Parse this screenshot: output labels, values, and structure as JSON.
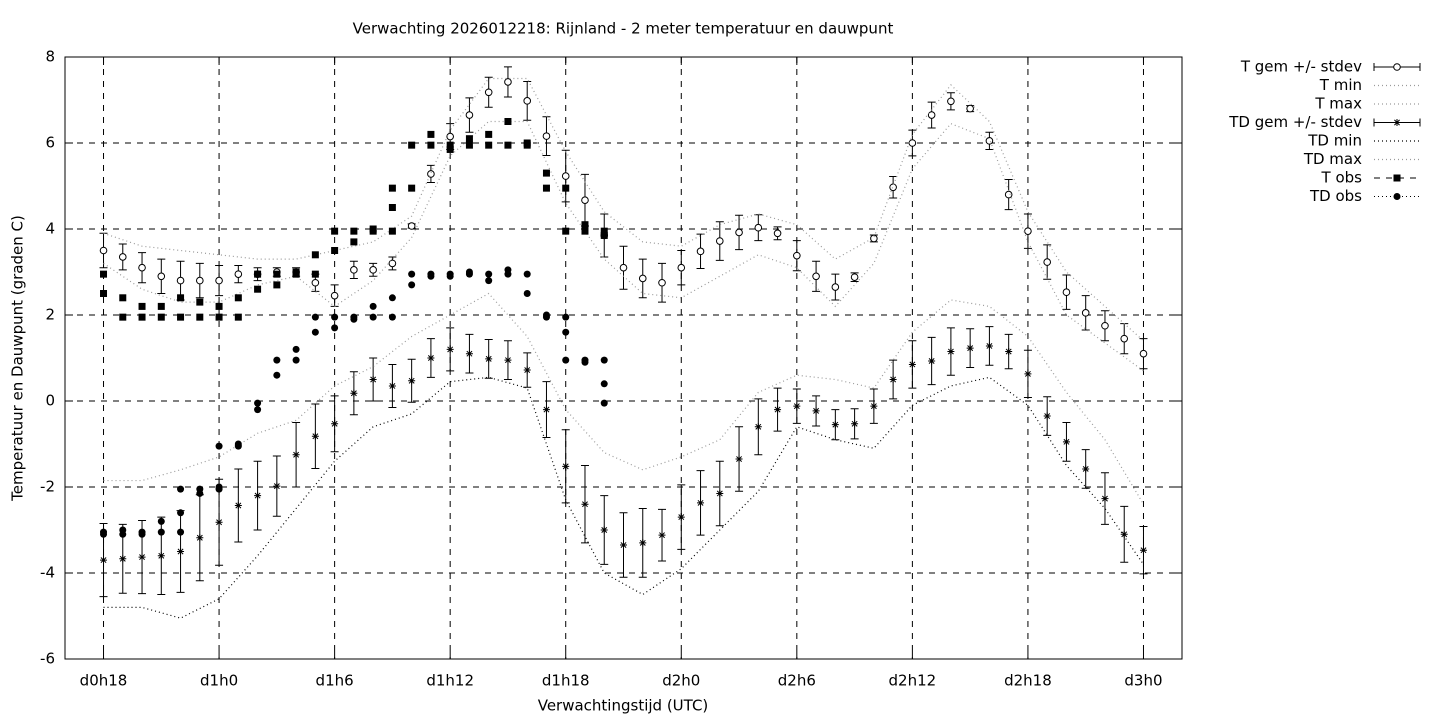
{
  "chart_data": {
    "type": "line",
    "title": "Verwachting 2026012218: Rijnland - 2 meter temperatuur en dauwpunt",
    "x_label": "Verwachtingstijd (UTC)",
    "y_label": "Temperatuur en Dauwpunt (graden C)",
    "xlim": [
      -2,
      56
    ],
    "ylim": [
      -6,
      8
    ],
    "xticks": [
      {
        "value": 0,
        "label": "d0h18"
      },
      {
        "value": 6,
        "label": "d1h0"
      },
      {
        "value": 12,
        "label": "d1h6"
      },
      {
        "value": 18,
        "label": "d1h12"
      },
      {
        "value": 24,
        "label": "d1h18"
      },
      {
        "value": 30,
        "label": "d2h0"
      },
      {
        "value": 36,
        "label": "d2h6"
      },
      {
        "value": 42,
        "label": "d2h12"
      },
      {
        "value": 48,
        "label": "d2h18"
      },
      {
        "value": 54,
        "label": "d3h0"
      }
    ],
    "yticks": [
      -6,
      -4,
      -2,
      0,
      2,
      4,
      6,
      8
    ],
    "grid": true,
    "legend": "outside-top-right",
    "series": [
      {
        "name": "T gem +/- stdev",
        "style": "errorbar-circle",
        "color": "#000000",
        "x": [
          0,
          1,
          2,
          3,
          4,
          5,
          6,
          7,
          8,
          9,
          10,
          11,
          12,
          13,
          14,
          15,
          16,
          17,
          18,
          19,
          20,
          21,
          22,
          23,
          24,
          25,
          26,
          27,
          28,
          29,
          30,
          31,
          32,
          33,
          34,
          35,
          36,
          37,
          38,
          39,
          40,
          41,
          42,
          43,
          44,
          45,
          46,
          47,
          48,
          49,
          50,
          51,
          52,
          53,
          54
        ],
        "values": [
          3.5,
          3.35,
          3.1,
          2.9,
          2.8,
          2.8,
          2.8,
          2.95,
          2.95,
          3.0,
          3.0,
          2.75,
          2.45,
          3.05,
          3.05,
          3.2,
          4.07,
          5.28,
          6.15,
          6.65,
          7.18,
          7.42,
          6.98,
          6.16,
          5.23,
          4.67,
          3.85,
          3.1,
          2.85,
          2.75,
          3.1,
          3.48,
          3.72,
          3.92,
          4.03,
          3.9,
          3.38,
          2.9,
          2.65,
          2.88,
          3.78,
          4.97,
          6.0,
          6.65,
          6.97,
          6.8,
          6.05,
          4.8,
          3.95,
          3.23,
          2.53,
          2.05,
          1.75,
          1.45,
          1.1
        ],
        "errors": [
          0.4,
          0.3,
          0.35,
          0.4,
          0.45,
          0.4,
          0.35,
          0.2,
          0.15,
          0.1,
          0.1,
          0.2,
          0.25,
          0.2,
          0.15,
          0.15,
          0.05,
          0.2,
          0.3,
          0.4,
          0.35,
          0.35,
          0.45,
          0.45,
          0.6,
          0.6,
          0.5,
          0.5,
          0.45,
          0.45,
          0.4,
          0.4,
          0.45,
          0.4,
          0.3,
          0.15,
          0.35,
          0.35,
          0.3,
          0.1,
          0.08,
          0.25,
          0.3,
          0.3,
          0.2,
          0.07,
          0.2,
          0.35,
          0.4,
          0.4,
          0.4,
          0.4,
          0.35,
          0.35,
          0.35
        ]
      },
      {
        "name": "T min",
        "style": "dotted",
        "color": "#9a9a9a",
        "x": [
          0,
          2,
          4,
          6,
          8,
          10,
          12,
          14,
          16,
          18,
          20,
          22,
          24,
          26,
          28,
          30,
          32,
          34,
          36,
          38,
          40,
          42,
          44,
          46,
          48,
          50,
          52,
          54
        ],
        "values": [
          3.2,
          2.6,
          2.3,
          2.3,
          2.7,
          2.9,
          2.2,
          2.8,
          3.8,
          5.7,
          6.5,
          6.5,
          4.6,
          3.3,
          2.5,
          2.4,
          2.9,
          3.4,
          3.1,
          2.2,
          3.2,
          5.4,
          6.45,
          6.1,
          3.7,
          2.0,
          1.35,
          0.7
        ]
      },
      {
        "name": "T max",
        "style": "dotted",
        "color": "#9a9a9a",
        "x": [
          0,
          2,
          4,
          6,
          8,
          10,
          12,
          14,
          16,
          18,
          20,
          22,
          24,
          26,
          28,
          30,
          32,
          34,
          36,
          38,
          40,
          42,
          44,
          46,
          48,
          50,
          52,
          54
        ],
        "values": [
          3.9,
          3.6,
          3.5,
          3.4,
          3.3,
          3.3,
          3.5,
          3.7,
          4.3,
          6.3,
          7.5,
          7.5,
          5.8,
          4.4,
          3.7,
          3.6,
          4.1,
          4.35,
          4.1,
          3.3,
          3.8,
          6.2,
          7.35,
          6.5,
          4.4,
          3.0,
          2.2,
          1.4
        ]
      },
      {
        "name": "TD gem +/- stdev",
        "style": "errorbar-star",
        "color": "#000000",
        "x": [
          0,
          1,
          2,
          3,
          4,
          5,
          6,
          7,
          8,
          9,
          10,
          11,
          12,
          13,
          14,
          15,
          16,
          17,
          18,
          19,
          20,
          21,
          22,
          23,
          24,
          25,
          26,
          27,
          28,
          29,
          30,
          31,
          32,
          33,
          34,
          35,
          36,
          37,
          38,
          39,
          40,
          41,
          42,
          43,
          44,
          45,
          46,
          47,
          48,
          49,
          50,
          51,
          52,
          53,
          54
        ],
        "values": [
          -3.7,
          -3.67,
          -3.63,
          -3.6,
          -3.5,
          -3.18,
          -2.82,
          -2.43,
          -2.2,
          -1.98,
          -1.25,
          -0.82,
          -0.53,
          0.18,
          0.5,
          0.35,
          0.47,
          1.0,
          1.2,
          1.1,
          0.98,
          0.95,
          0.72,
          -0.2,
          -1.52,
          -2.4,
          -3.0,
          -3.35,
          -3.3,
          -3.12,
          -2.7,
          -2.37,
          -2.15,
          -1.35,
          -0.6,
          -0.2,
          -0.12,
          -0.23,
          -0.55,
          -0.53,
          -0.12,
          0.5,
          0.85,
          0.93,
          1.15,
          1.23,
          1.28,
          1.15,
          0.63,
          -0.35,
          -0.95,
          -1.58,
          -2.27,
          -3.1,
          -3.47
        ],
        "errors": [
          0.85,
          0.8,
          0.85,
          0.9,
          0.95,
          1.0,
          1.0,
          0.85,
          0.8,
          0.7,
          0.75,
          0.75,
          0.65,
          0.5,
          0.5,
          0.5,
          0.5,
          0.45,
          0.5,
          0.45,
          0.45,
          0.45,
          0.4,
          0.65,
          0.85,
          0.9,
          0.8,
          0.75,
          0.8,
          0.6,
          0.75,
          0.75,
          0.75,
          0.75,
          0.65,
          0.5,
          0.4,
          0.35,
          0.35,
          0.35,
          0.4,
          0.45,
          0.55,
          0.55,
          0.55,
          0.45,
          0.45,
          0.4,
          0.55,
          0.45,
          0.45,
          0.45,
          0.6,
          0.65,
          0.55
        ]
      },
      {
        "name": "TD min",
        "style": "dotted",
        "color": "#000000",
        "x": [
          0,
          2,
          4,
          6,
          8,
          10,
          12,
          14,
          16,
          18,
          20,
          22,
          24,
          26,
          28,
          30,
          32,
          34,
          36,
          38,
          40,
          42,
          44,
          46,
          48,
          50,
          52,
          54
        ],
        "values": [
          -4.8,
          -4.8,
          -5.05,
          -4.6,
          -3.6,
          -2.5,
          -1.4,
          -0.6,
          -0.3,
          0.45,
          0.55,
          0.3,
          -2.3,
          -4.0,
          -4.5,
          -3.9,
          -3.0,
          -2.1,
          -0.6,
          -0.9,
          -1.1,
          -0.1,
          0.35,
          0.55,
          -0.1,
          -1.5,
          -2.5,
          -3.8
        ]
      },
      {
        "name": "TD max",
        "style": "dotted",
        "color": "#9a9a9a",
        "x": [
          0,
          2,
          4,
          6,
          8,
          10,
          12,
          14,
          16,
          18,
          20,
          22,
          24,
          26,
          28,
          30,
          32,
          34,
          36,
          38,
          40,
          42,
          44,
          46,
          48,
          50,
          52,
          54
        ],
        "values": [
          -1.85,
          -1.85,
          -1.6,
          -1.3,
          -0.75,
          -0.45,
          0.35,
          0.8,
          1.5,
          2.0,
          2.5,
          1.5,
          -0.2,
          -1.2,
          -1.6,
          -1.3,
          -0.9,
          0.2,
          0.6,
          0.5,
          0.3,
          1.6,
          2.35,
          2.2,
          1.5,
          0.2,
          -0.9,
          -2.4
        ]
      },
      {
        "name": "T obs",
        "style": "points-square",
        "color": "#000000",
        "x": [
          0,
          0,
          1,
          1,
          2,
          2,
          3,
          3,
          4,
          4,
          5,
          5,
          6,
          6,
          7,
          7,
          8,
          8,
          9,
          9,
          10,
          10,
          11,
          11,
          12,
          12,
          13,
          13,
          14,
          14,
          15,
          15,
          15,
          16,
          16,
          17,
          17,
          18,
          18,
          19,
          19,
          20,
          20,
          21,
          21,
          22,
          22,
          23,
          23,
          24,
          24,
          25,
          25,
          26,
          26
        ],
        "values": [
          2.95,
          2.5,
          2.4,
          1.95,
          2.2,
          1.95,
          2.2,
          1.95,
          2.4,
          1.95,
          2.3,
          1.95,
          2.2,
          1.95,
          2.4,
          1.95,
          2.95,
          2.6,
          2.95,
          2.7,
          3.0,
          2.95,
          3.4,
          2.95,
          3.95,
          3.5,
          3.95,
          3.7,
          4.0,
          3.95,
          4.95,
          4.5,
          3.95,
          5.95,
          4.95,
          6.2,
          5.95,
          5.95,
          5.85,
          6.1,
          5.95,
          6.2,
          5.95,
          6.5,
          5.95,
          6.0,
          5.95,
          5.3,
          4.95,
          4.95,
          3.95,
          4.1,
          3.95,
          3.95,
          3.85
        ]
      },
      {
        "name": "TD obs",
        "style": "points-circle",
        "color": "#000000",
        "x": [
          0,
          0,
          1,
          1,
          2,
          2,
          3,
          3,
          4,
          4,
          4,
          5,
          5,
          6,
          6,
          6,
          7,
          7,
          8,
          8,
          9,
          9,
          10,
          10,
          11,
          11,
          12,
          12,
          13,
          13,
          14,
          14,
          15,
          15,
          16,
          16,
          17,
          17,
          18,
          18,
          19,
          19,
          20,
          20,
          21,
          21,
          22,
          22,
          23,
          23,
          24,
          24,
          24,
          25,
          25,
          26,
          26,
          26
        ],
        "values": [
          -3.05,
          -3.1,
          -3.0,
          -3.1,
          -3.05,
          -3.1,
          -2.8,
          -3.05,
          -2.05,
          -2.6,
          -3.05,
          -2.05,
          -2.15,
          -1.05,
          -2.0,
          -2.05,
          -1.0,
          -1.05,
          -0.05,
          -0.2,
          0.95,
          0.6,
          1.2,
          0.95,
          1.95,
          1.6,
          1.95,
          1.7,
          1.95,
          1.9,
          2.2,
          1.95,
          2.4,
          1.95,
          2.95,
          2.7,
          2.95,
          2.9,
          2.95,
          2.9,
          2.95,
          3.0,
          2.95,
          2.8,
          3.05,
          2.95,
          2.95,
          2.5,
          2.0,
          1.95,
          1.95,
          1.6,
          0.95,
          0.95,
          0.9,
          0.95,
          0.4,
          -0.05
        ]
      }
    ]
  }
}
